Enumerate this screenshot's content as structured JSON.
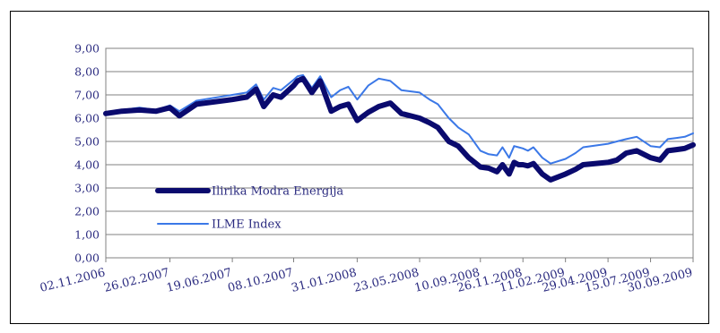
{
  "chart_data": {
    "type": "line",
    "title": "",
    "xlabel": "",
    "ylabel": "",
    "ylim": [
      0,
      9
    ],
    "yticks": [
      "0,00",
      "1,00",
      "2,00",
      "3,00",
      "4,00",
      "5,00",
      "6,00",
      "7,00",
      "8,00",
      "9,00"
    ],
    "xticks": [
      "02.11.2006",
      "26.02.2007",
      "19.06.2007",
      "08.10.2007",
      "31.01.2008",
      "23.05.2008",
      "10.09.2008",
      "26.11.2008",
      "11.02.2009",
      "29.04.2009",
      "15.07.2009",
      "30.09.2009"
    ],
    "x": [
      "02.11.2006",
      "01.12.2006",
      "02.01.2007",
      "01.02.2007",
      "26.02.2007",
      "15.03.2007",
      "15.04.2007",
      "19.06.2007",
      "15.07.2007",
      "01.08.2007",
      "15.08.2007",
      "01.09.2007",
      "15.09.2007",
      "08.10.2007",
      "15.10.2007",
      "25.10.2007",
      "10.11.2007",
      "25.11.2007",
      "15.12.2007",
      "31.12.2007",
      "15.01.2008",
      "31.01.2008",
      "20.02.2008",
      "10.03.2008",
      "31.03.2008",
      "20.04.2008",
      "23.05.2008",
      "10.06.2008",
      "25.06.2008",
      "15.07.2008",
      "01.08.2008",
      "20.08.2008",
      "10.09.2008",
      "25.09.2008",
      "10.10.2008",
      "20.10.2008",
      "01.11.2008",
      "10.11.2008",
      "18.11.2008",
      "26.11.2008",
      "05.12.2008",
      "15.12.2008",
      "31.12.2008",
      "15.01.2009",
      "11.02.2009",
      "01.03.2009",
      "15.03.2009",
      "29.04.2009",
      "15.05.2009",
      "01.06.2009",
      "20.06.2009",
      "15.07.2009",
      "01.08.2009",
      "15.08.2009",
      "31.08.2009",
      "15.09.2009",
      "30.09.2009"
    ],
    "series": [
      {
        "name": "Ilirika Modra Energija",
        "color": "#0a0a6e",
        "values": [
          6.2,
          6.3,
          6.35,
          6.3,
          6.45,
          6.1,
          6.6,
          6.8,
          6.9,
          7.25,
          6.5,
          7.0,
          6.9,
          7.4,
          7.6,
          7.7,
          7.1,
          7.6,
          6.3,
          6.5,
          6.6,
          5.9,
          6.25,
          6.5,
          6.65,
          6.2,
          6.0,
          5.8,
          5.6,
          5.0,
          4.8,
          4.3,
          3.9,
          3.85,
          3.7,
          4.0,
          3.6,
          4.1,
          4.0,
          4.0,
          3.95,
          4.05,
          3.6,
          3.35,
          3.6,
          3.8,
          4.0,
          4.1,
          4.2,
          4.5,
          4.6,
          4.3,
          4.2,
          4.6,
          4.65,
          4.7,
          4.85
        ]
      },
      {
        "name": "ILME Index",
        "color": "#3b78e7",
        "values": [
          6.25,
          6.35,
          6.45,
          6.35,
          6.55,
          6.3,
          6.75,
          7.0,
          7.1,
          7.45,
          6.8,
          7.3,
          7.2,
          7.65,
          7.8,
          7.85,
          7.3,
          7.8,
          6.9,
          7.2,
          7.35,
          6.8,
          7.4,
          7.7,
          7.6,
          7.2,
          7.1,
          6.8,
          6.6,
          6.0,
          5.6,
          5.3,
          4.6,
          4.45,
          4.4,
          4.75,
          4.3,
          4.8,
          4.75,
          4.7,
          4.6,
          4.75,
          4.3,
          4.05,
          4.25,
          4.5,
          4.75,
          4.9,
          5.0,
          5.1,
          5.2,
          4.8,
          4.75,
          5.1,
          5.15,
          5.2,
          5.35
        ]
      }
    ],
    "legend": "inside-left",
    "grid": true
  }
}
